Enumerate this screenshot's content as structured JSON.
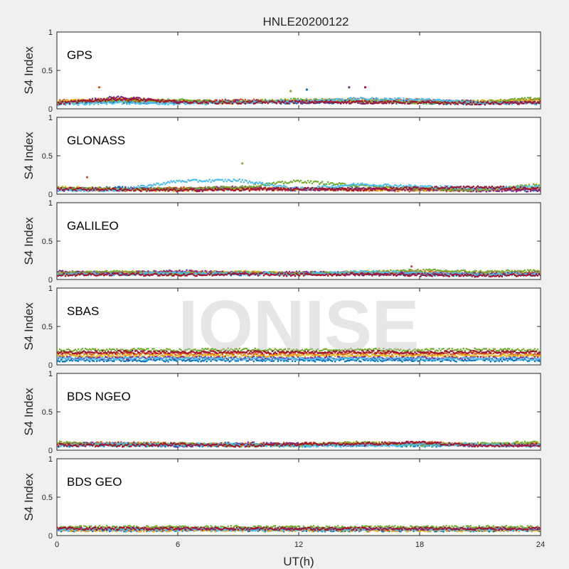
{
  "chart_data": {
    "type": "scatter",
    "title": "HNLE20200122",
    "xlabel": "UT(h)",
    "ylabel": "S4 Index",
    "xlim": [
      0,
      24
    ],
    "ylim": [
      0,
      1
    ],
    "xticks": [
      "0",
      "6",
      "12",
      "18",
      "24"
    ],
    "yticks": [
      "0",
      "0.5",
      "1"
    ],
    "grid": false,
    "watermark": "IONISE",
    "colors": [
      "#0072bd",
      "#d95319",
      "#edb120",
      "#7e2f8e",
      "#77ac30",
      "#4dbeee",
      "#a2142f"
    ],
    "panels": [
      {
        "name": "GPS",
        "series": [
          {
            "x": [
              0,
              3,
              6,
              9,
              12,
              15,
              18,
              21,
              24
            ],
            "y": [
              0.08,
              0.09,
              0.08,
              0.09,
              0.08,
              0.09,
              0.08,
              0.07,
              0.09
            ]
          },
          {
            "x": [
              0,
              3,
              6,
              9,
              12,
              15,
              18,
              21,
              24
            ],
            "y": [
              0.1,
              0.12,
              0.09,
              0.11,
              0.1,
              0.12,
              0.11,
              0.08,
              0.12
            ]
          },
          {
            "x": [
              0,
              3,
              6,
              9,
              12,
              15,
              18,
              21,
              24
            ],
            "y": [
              0.09,
              0.14,
              0.1,
              0.08,
              0.11,
              0.1,
              0.09,
              0.1,
              0.11
            ]
          },
          {
            "x": [
              0,
              3,
              6,
              9,
              12,
              15,
              18,
              21,
              24
            ],
            "y": [
              0.07,
              0.15,
              0.09,
              0.1,
              0.09,
              0.08,
              0.1,
              0.09,
              0.08
            ]
          },
          {
            "x": [
              0,
              3,
              6,
              9,
              12,
              15,
              18,
              21,
              24
            ],
            "y": [
              0.08,
              0.1,
              0.11,
              0.09,
              0.12,
              0.11,
              0.08,
              0.09,
              0.14
            ]
          },
          {
            "x": [
              0,
              3,
              6,
              9,
              12,
              15,
              18,
              21,
              24
            ],
            "y": [
              0.06,
              0.08,
              0.07,
              0.08,
              0.1,
              0.13,
              0.12,
              0.08,
              0.07
            ]
          },
          {
            "x": [
              0,
              3,
              6,
              9,
              12,
              15,
              18,
              21,
              24
            ],
            "y": [
              0.07,
              0.13,
              0.09,
              0.08,
              0.09,
              0.09,
              0.08,
              0.07,
              0.08
            ]
          }
        ],
        "outliers": {
          "x": [
            2.1,
            11.6,
            12.4,
            14.5,
            15.3
          ],
          "y": [
            0.28,
            0.23,
            0.25,
            0.28,
            0.28
          ]
        }
      },
      {
        "name": "GLONASS",
        "series": [
          {
            "x": [
              0,
              3,
              6,
              9,
              12,
              15,
              18,
              21,
              24
            ],
            "y": [
              0.06,
              0.08,
              0.06,
              0.07,
              0.06,
              0.07,
              0.06,
              0.07,
              0.06
            ]
          },
          {
            "x": [
              0,
              3,
              6,
              9,
              12,
              15,
              18,
              21,
              24
            ],
            "y": [
              0.07,
              0.05,
              0.08,
              0.07,
              0.06,
              0.06,
              0.05,
              0.06,
              0.08
            ]
          },
          {
            "x": [
              0,
              3,
              6,
              9,
              12,
              15,
              18,
              21,
              24
            ],
            "y": [
              0.09,
              0.06,
              0.05,
              0.08,
              0.07,
              0.06,
              0.06,
              0.05,
              0.09
            ]
          },
          {
            "x": [
              0,
              3,
              6,
              9,
              12,
              15,
              18,
              21,
              24
            ],
            "y": [
              0.05,
              0.07,
              0.06,
              0.09,
              0.06,
              0.07,
              0.06,
              0.05,
              0.05
            ]
          },
          {
            "x": [
              0,
              3,
              6,
              9,
              12,
              15,
              18,
              21,
              24
            ],
            "y": [
              0.08,
              0.06,
              0.07,
              0.09,
              0.17,
              0.11,
              0.07,
              0.06,
              0.12
            ]
          },
          {
            "x": [
              0,
              3,
              6,
              9,
              12,
              15,
              18,
              21,
              24
            ],
            "y": [
              0.06,
              0.05,
              0.17,
              0.18,
              0.07,
              0.13,
              0.1,
              0.08,
              0.1
            ]
          },
          {
            "x": [
              0,
              3,
              6,
              9,
              12,
              15,
              18,
              21,
              24
            ],
            "y": [
              0.07,
              0.06,
              0.05,
              0.06,
              0.07,
              0.06,
              0.08,
              0.09,
              0.07
            ]
          }
        ],
        "outliers": {
          "x": [
            1.5,
            9.2
          ],
          "y": [
            0.22,
            0.4
          ]
        }
      },
      {
        "name": "GALILEO",
        "series": [
          {
            "x": [
              0,
              3,
              6,
              9,
              12,
              15,
              18,
              21,
              24
            ],
            "y": [
              0.08,
              0.07,
              0.08,
              0.07,
              0.08,
              0.07,
              0.07,
              0.06,
              0.07
            ]
          },
          {
            "x": [
              0,
              3,
              6,
              9,
              12,
              15,
              18,
              21,
              24
            ],
            "y": [
              0.09,
              0.08,
              0.1,
              0.09,
              0.08,
              0.09,
              0.1,
              0.08,
              0.09
            ]
          },
          {
            "x": [
              0,
              3,
              6,
              9,
              12,
              15,
              18,
              21,
              24
            ],
            "y": [
              0.07,
              0.09,
              0.08,
              0.1,
              0.07,
              0.1,
              0.09,
              0.07,
              0.08
            ]
          },
          {
            "x": [
              0,
              3,
              6,
              9,
              12,
              15,
              18,
              21,
              24
            ],
            "y": [
              0.1,
              0.08,
              0.11,
              0.08,
              0.09,
              0.08,
              0.08,
              0.08,
              0.09
            ]
          },
          {
            "x": [
              0,
              3,
              6,
              9,
              12,
              15,
              18,
              21,
              24
            ],
            "y": [
              0.08,
              0.1,
              0.07,
              0.09,
              0.08,
              0.09,
              0.12,
              0.1,
              0.11
            ]
          },
          {
            "x": [
              0,
              3,
              6,
              9,
              12,
              15,
              18,
              21,
              24
            ],
            "y": [
              0.07,
              0.07,
              0.09,
              0.08,
              0.07,
              0.1,
              0.08,
              0.07,
              0.07
            ]
          },
          {
            "x": [
              0,
              3,
              6,
              9,
              12,
              15,
              18,
              21,
              24
            ],
            "y": [
              0.06,
              0.07,
              0.06,
              0.07,
              0.06,
              0.07,
              0.06,
              0.05,
              0.06
            ]
          }
        ],
        "outliers": {
          "x": [
            17.6
          ],
          "y": [
            0.17
          ]
        }
      },
      {
        "name": "SBAS",
        "series": [
          {
            "x": [
              0,
              3,
              6,
              9,
              12,
              15,
              18,
              21,
              24
            ],
            "y": [
              0.06,
              0.06,
              0.06,
              0.06,
              0.06,
              0.06,
              0.06,
              0.06,
              0.06
            ]
          },
          {
            "x": [
              0,
              3,
              6,
              9,
              12,
              15,
              18,
              21,
              24
            ],
            "y": [
              0.14,
              0.15,
              0.14,
              0.15,
              0.14,
              0.15,
              0.14,
              0.15,
              0.14
            ]
          },
          {
            "x": [
              0,
              3,
              6,
              9,
              12,
              15,
              18,
              21,
              24
            ],
            "y": [
              0.12,
              0.12,
              0.12,
              0.12,
              0.12,
              0.12,
              0.12,
              0.12,
              0.12
            ]
          },
          {
            "x": [
              0,
              3,
              6,
              9,
              12,
              15,
              18,
              21,
              24
            ],
            "y": [
              0.09,
              0.09,
              0.09,
              0.09,
              0.09,
              0.09,
              0.09,
              0.09,
              0.09
            ]
          },
          {
            "x": [
              0,
              3,
              6,
              9,
              12,
              15,
              18,
              21,
              24
            ],
            "y": [
              0.19,
              0.2,
              0.19,
              0.2,
              0.19,
              0.2,
              0.19,
              0.2,
              0.19
            ]
          },
          {
            "x": [
              0,
              3,
              6,
              9,
              12,
              15,
              18,
              21,
              24
            ],
            "y": [
              0.08,
              0.08,
              0.08,
              0.08,
              0.08,
              0.08,
              0.08,
              0.08,
              0.08
            ]
          },
          {
            "x": [
              0,
              3,
              6,
              9,
              12,
              15,
              18,
              21,
              24
            ],
            "y": [
              0.16,
              0.17,
              0.16,
              0.17,
              0.16,
              0.17,
              0.16,
              0.17,
              0.16
            ]
          }
        ],
        "outliers": {
          "x": [],
          "y": []
        }
      },
      {
        "name": "BDS NGEO",
        "series": [
          {
            "x": [
              0,
              3,
              6,
              9,
              12,
              15,
              18,
              21,
              24
            ],
            "y": [
              0.06,
              0.07,
              0.06,
              0.07,
              0.06,
              0.07,
              0.06,
              0.07,
              0.06
            ]
          },
          {
            "x": [
              0,
              3,
              6,
              9,
              12,
              15,
              18,
              21,
              24
            ],
            "y": [
              0.07,
              0.1,
              0.08,
              0.07,
              0.09,
              0.08,
              0.1,
              0.07,
              0.08
            ]
          },
          {
            "x": [
              0,
              3,
              6,
              9,
              12,
              15,
              18,
              21,
              24
            ],
            "y": [
              0.09,
              0.08,
              0.07,
              0.08,
              0.07,
              0.09,
              0.08,
              0.08,
              0.09
            ]
          },
          {
            "x": [
              0,
              3,
              6,
              9,
              12,
              15,
              18,
              21,
              24
            ],
            "y": [
              0.08,
              0.09,
              0.06,
              0.09,
              0.08,
              0.07,
              0.09,
              0.06,
              0.07
            ]
          },
          {
            "x": [
              0,
              3,
              6,
              9,
              12,
              15,
              18,
              21,
              24
            ],
            "y": [
              0.1,
              0.07,
              0.09,
              0.06,
              0.07,
              0.1,
              0.07,
              0.09,
              0.1
            ]
          },
          {
            "x": [
              0,
              3,
              6,
              9,
              12,
              15,
              18,
              21,
              24
            ],
            "y": [
              0.06,
              0.08,
              0.07,
              0.08,
              0.06,
              0.06,
              0.07,
              0.08,
              0.06
            ]
          },
          {
            "x": [
              0,
              3,
              6,
              9,
              12,
              15,
              18,
              21,
              24
            ],
            "y": [
              0.07,
              0.06,
              0.08,
              0.06,
              0.08,
              0.08,
              0.1,
              0.06,
              0.07
            ]
          }
        ],
        "outliers": {
          "x": [],
          "y": []
        }
      },
      {
        "name": "BDS GEO",
        "series": [
          {
            "x": [
              0,
              3,
              6,
              9,
              12,
              15,
              18,
              21,
              24
            ],
            "y": [
              0.07,
              0.07,
              0.07,
              0.07,
              0.07,
              0.07,
              0.07,
              0.07,
              0.07
            ]
          },
          {
            "x": [
              0,
              3,
              6,
              9,
              12,
              15,
              18,
              21,
              24
            ],
            "y": [
              0.08,
              0.08,
              0.08,
              0.08,
              0.08,
              0.08,
              0.08,
              0.08,
              0.08
            ]
          },
          {
            "x": [
              0,
              3,
              6,
              9,
              12,
              15,
              18,
              21,
              24
            ],
            "y": [
              0.07,
              0.07,
              0.07,
              0.07,
              0.07,
              0.07,
              0.07,
              0.07,
              0.07
            ]
          },
          {
            "x": [
              0,
              3,
              6,
              9,
              12,
              15,
              18,
              21,
              24
            ],
            "y": [
              0.09,
              0.09,
              0.09,
              0.09,
              0.09,
              0.09,
              0.09,
              0.09,
              0.09
            ]
          },
          {
            "x": [
              0,
              3,
              6,
              9,
              12,
              15,
              18,
              21,
              24
            ],
            "y": [
              0.11,
              0.11,
              0.11,
              0.11,
              0.11,
              0.11,
              0.11,
              0.11,
              0.11
            ]
          },
          {
            "x": [
              0,
              3,
              6,
              9,
              12,
              15,
              18,
              21,
              24
            ],
            "y": [
              0.08,
              0.08,
              0.08,
              0.08,
              0.08,
              0.08,
              0.08,
              0.08,
              0.08
            ]
          },
          {
            "x": [
              0,
              3,
              6,
              9,
              12,
              15,
              18,
              21,
              24
            ],
            "y": [
              0.09,
              0.09,
              0.09,
              0.09,
              0.09,
              0.09,
              0.09,
              0.09,
              0.09
            ]
          }
        ],
        "outliers": {
          "x": [],
          "y": []
        }
      }
    ]
  }
}
